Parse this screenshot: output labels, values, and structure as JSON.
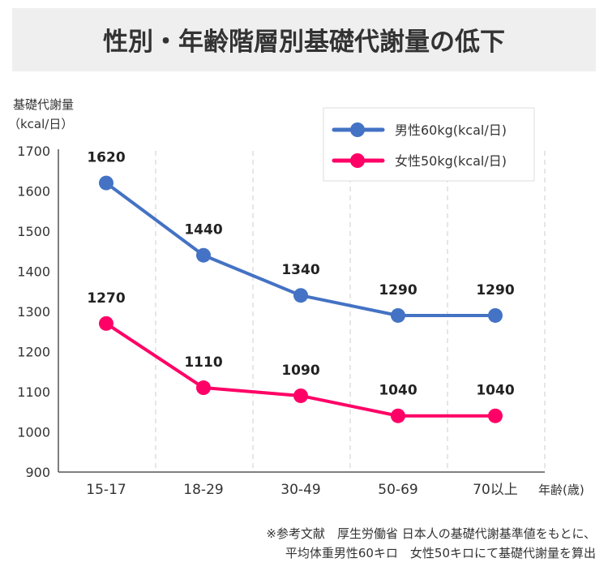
{
  "chart_data": {
    "type": "line",
    "title": "性別・年齢階層別基礎代謝量の低下",
    "ylabel_line1": "基礎代謝量",
    "ylabel_line2": "（kcal/日）",
    "xlabel": "年齢(歳)",
    "categories": [
      "15-17",
      "18-29",
      "30-49",
      "50-69",
      "70以上"
    ],
    "ylim": [
      900,
      1700
    ],
    "yticks": [
      900,
      1000,
      1100,
      1200,
      1300,
      1400,
      1500,
      1600,
      1700
    ],
    "legend_position": "top-right",
    "series": [
      {
        "name": "男性60kg(kcal/日)",
        "color": "#4472c4",
        "values": [
          1620,
          1440,
          1340,
          1290,
          1290
        ]
      },
      {
        "name": "女性50kg(kcal/日)",
        "color": "#ff0066",
        "values": [
          1270,
          1110,
          1090,
          1040,
          1040
        ]
      }
    ]
  },
  "footnote": {
    "line1": "※参考文献　厚生労働省 日本人の基礎代謝基準値をもとに、",
    "line2": "平均体重男性60キロ　女性50キロにて基礎代謝量を算出"
  }
}
